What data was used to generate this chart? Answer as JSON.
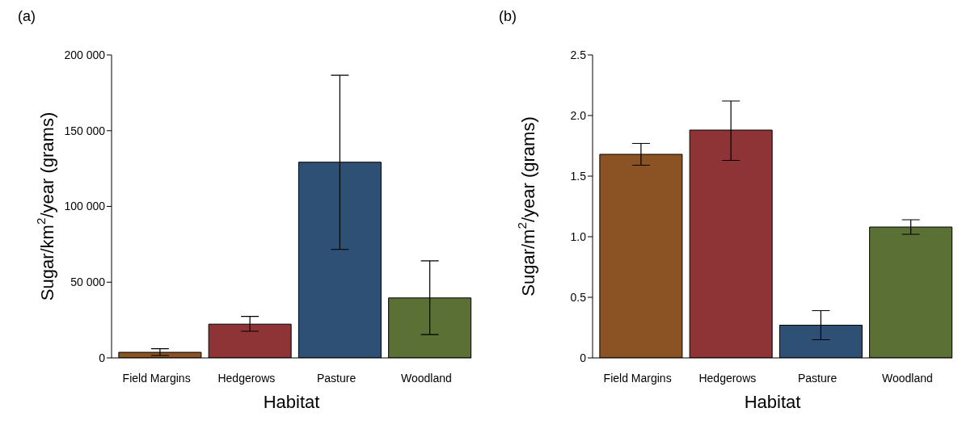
{
  "chart_data": [
    {
      "type": "bar",
      "title": "(a)",
      "xlabel": "Habitat",
      "ylabel": "Sugar/km$^{2}$/year (grams)",
      "categories": [
        "Field Margins",
        "Hedgerows",
        "Pasture",
        "Woodland"
      ],
      "values": [
        3700,
        22300,
        129200,
        39600
      ],
      "colors": [
        "#8b5224",
        "#8e3436",
        "#2e5075",
        "#5b7035"
      ],
      "errors": [
        [
          1600,
          6100
        ],
        [
          17600,
          27400
        ],
        [
          71600,
          186600
        ],
        [
          15400,
          64100
        ]
      ],
      "ylim": [
        0,
        200000
      ],
      "yticks": [
        0,
        {
          "value": 50000,
          "label": "50 000"
        },
        {
          "value": 100000,
          "label": "100 000"
        },
        {
          "value": 150000,
          "label": "150 000"
        },
        {
          "value": 200000,
          "label": "200 000"
        }
      ]
    },
    {
      "type": "bar",
      "title": "(b)",
      "xlabel": "Habitat",
      "ylabel": "Sugar/m$^{2}$/year (grams)",
      "categories": [
        "Field Margins",
        "Hedgerows",
        "Pasture",
        "Woodland"
      ],
      "values": [
        1.68,
        1.88,
        0.27,
        1.08
      ],
      "colors": [
        "#8b5224",
        "#8e3436",
        "#2e5075",
        "#5b7035"
      ],
      "errors": [
        [
          1.59,
          1.77
        ],
        [
          1.63,
          2.12
        ],
        [
          0.15,
          0.39
        ],
        [
          1.02,
          1.14
        ]
      ],
      "ylim": [
        0,
        2.5
      ],
      "yticks": [
        0,
        {
          "value": 0.5,
          "label": "0.5"
        },
        {
          "value": 1,
          "label": "1.0"
        },
        {
          "value": 1.5,
          "label": "1.5"
        },
        {
          "value": 2,
          "label": "2.0"
        },
        {
          "value": 2.5,
          "label": "2.5"
        }
      ]
    }
  ]
}
